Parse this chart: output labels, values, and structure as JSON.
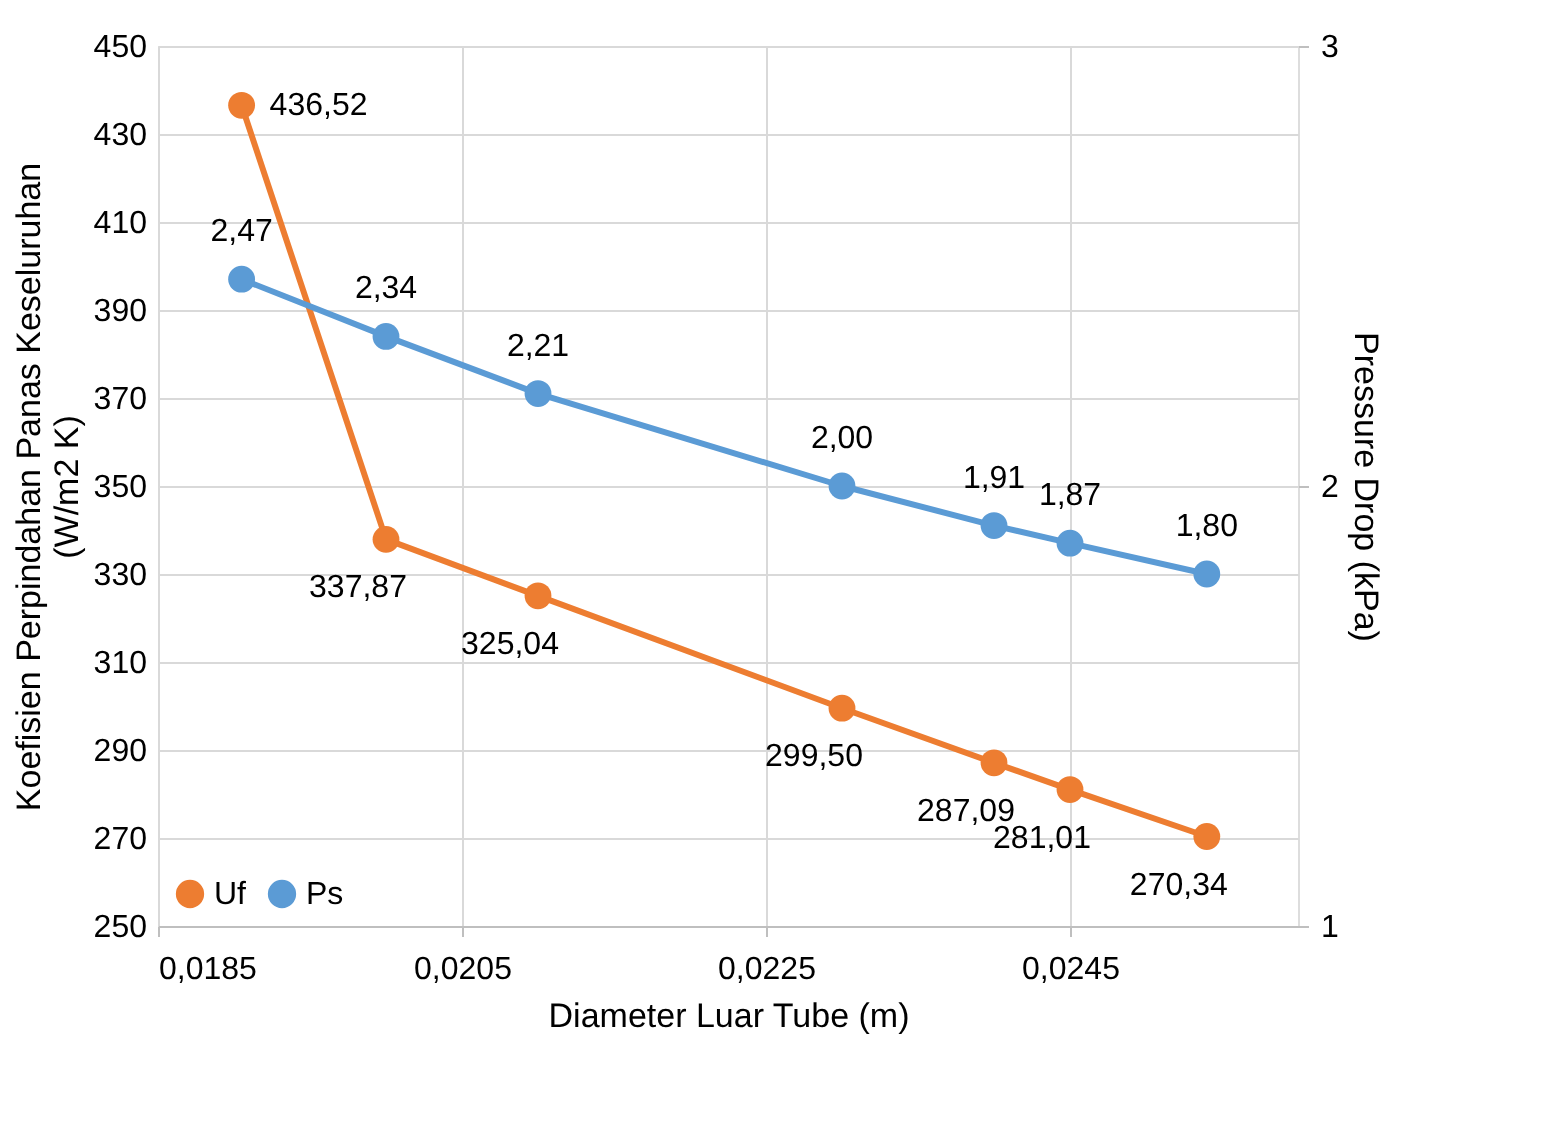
{
  "chart_data": {
    "type": "line",
    "xlabel": "Diameter Luar Tube (m)",
    "ylabel": "Koefisien Perpindahan Panas Keseluruhan (W/m2 K)",
    "y2label": "Pressure Drop (kPa)",
    "x": [
      0.01905,
      0.02,
      0.021,
      0.023,
      0.024,
      0.0245,
      0.0254
    ],
    "series": [
      {
        "name": "Uf",
        "color": "#ed7d31",
        "values": [
          436.52,
          337.87,
          325.04,
          299.5,
          287.09,
          281.01,
          270.34
        ],
        "value_labels": [
          "436,52",
          "337,87",
          "325,04",
          "299,50",
          "287,09",
          "281,01",
          "270,34"
        ]
      },
      {
        "name": "Ps",
        "color": "#5b9bd5",
        "axis": "y2",
        "values": [
          2.47,
          2.34,
          2.21,
          2.0,
          1.91,
          1.87,
          1.8
        ],
        "value_labels": [
          "2,47",
          "2,34",
          "2,21",
          "2,00",
          "1,91",
          "1,87",
          "1,80"
        ]
      }
    ],
    "xlim": [
      0.0185,
      0.026
    ],
    "xticks": [
      {
        "value": 0.0185,
        "label": "0,0185"
      },
      {
        "value": 0.0205,
        "label": "0,0205"
      },
      {
        "value": 0.0225,
        "label": "0,0225"
      },
      {
        "value": 0.0245,
        "label": "0,0245"
      }
    ],
    "ylim": [
      250,
      450
    ],
    "yticks": [
      250,
      270,
      290,
      310,
      330,
      350,
      370,
      390,
      410,
      430,
      450
    ],
    "y2lim": [
      1,
      3
    ],
    "y2ticks": [
      1,
      2,
      3
    ],
    "grid": true,
    "legend": "bottom left",
    "marker": "circle",
    "line_style": "solid"
  }
}
